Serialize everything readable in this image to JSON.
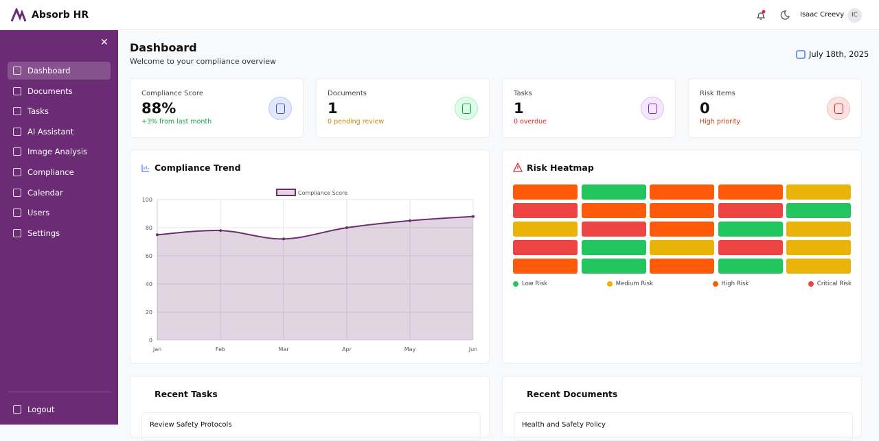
{
  "header": {
    "brand": "Absorb HR",
    "user": "Isaac Creevy",
    "initials": "IC"
  },
  "sidebar": {
    "nav": [
      "Dashboard",
      "Documents",
      "Tasks",
      "AI Assistant",
      "Image Analysis",
      "Compliance",
      "Calendar",
      "Users",
      "Settings"
    ],
    "logout": "Logout"
  },
  "page": {
    "title": "Dashboard",
    "subtitle": "Welcome to your compliance overview",
    "date": "July 18th, 2025"
  },
  "stats": [
    {
      "label": "Compliance Score",
      "value": "88%",
      "note": "+3% from last month"
    },
    {
      "label": "Documents",
      "value": 1,
      "note": "0 pending review"
    },
    {
      "label": "Tasks",
      "value": 1,
      "note": "0 overdue"
    },
    {
      "label": "Risk Items",
      "value": 0,
      "note": "High priority"
    }
  ],
  "chart_data": {
    "type": "line",
    "title": "Compliance Trend",
    "categories": [
      "Jan",
      "Feb",
      "Mar",
      "Apr",
      "May",
      "Jun"
    ],
    "series": [
      {
        "name": "Compliance Score",
        "color": "#6b2f6f",
        "values": [
          75,
          78,
          72,
          80,
          85,
          88
        ]
      }
    ],
    "ylim": [
      0,
      100
    ],
    "yticks": [
      0,
      20,
      40,
      60,
      80,
      100
    ],
    "grid": true
  },
  "heatmap": {
    "title": "Risk Heatmap",
    "legend": [
      {
        "name": "Low Risk",
        "color": "#22c55e"
      },
      {
        "name": "Medium Risk",
        "color": "#eab308"
      },
      {
        "name": "High Risk",
        "color": "#ff5a0a"
      },
      {
        "name": "Critical Risk",
        "color": "#ef4444"
      }
    ],
    "rows": [
      [
        2,
        0,
        2,
        2,
        1
      ],
      [
        3,
        2,
        2,
        3,
        0
      ],
      [
        1,
        3,
        2,
        0,
        1
      ],
      [
        3,
        0,
        1,
        3,
        1
      ],
      [
        2,
        0,
        2,
        0,
        1
      ]
    ]
  },
  "recent_tasks": {
    "title": "Recent Tasks",
    "items": [
      "Review Safety Protocols"
    ]
  },
  "recent_documents": {
    "title": "Recent Documents",
    "items": [
      "Health and Safety Policy"
    ]
  }
}
